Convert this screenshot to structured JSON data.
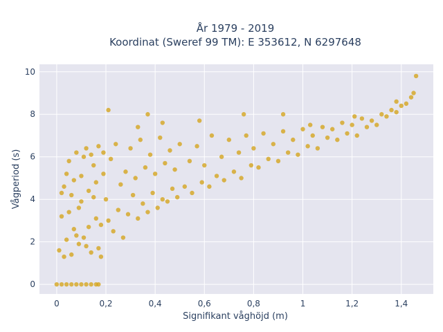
{
  "chart_data": {
    "type": "scatter",
    "title_line1": "År 1979 - 2019",
    "title_line2": "Koordinat (Sweref 99 TM): E 353612, N 6297648",
    "xlabel": "Signifikant våghöjd (m)",
    "ylabel": "Vågperiod (s)",
    "xlim": [
      -0.07,
      1.53
    ],
    "ylim": [
      -0.45,
      10.35
    ],
    "x_ticks": [
      {
        "value": 0,
        "label": "0"
      },
      {
        "value": 0.2,
        "label": "0,2"
      },
      {
        "value": 0.4,
        "label": "0,4"
      },
      {
        "value": 0.6,
        "label": "0,6"
      },
      {
        "value": 0.8,
        "label": "0,8"
      },
      {
        "value": 1.0,
        "label": "1"
      },
      {
        "value": 1.2,
        "label": "1,2"
      },
      {
        "value": 1.4,
        "label": "1,4"
      }
    ],
    "y_ticks": [
      {
        "value": 0,
        "label": "0"
      },
      {
        "value": 2,
        "label": "2"
      },
      {
        "value": 4,
        "label": "4"
      },
      {
        "value": 6,
        "label": "6"
      },
      {
        "value": 8,
        "label": "8"
      },
      {
        "value": 10,
        "label": "10"
      }
    ],
    "grid": true,
    "marker_color": "#d4a51f",
    "plot_background": "#e5e5ef",
    "series": [
      {
        "points": [
          [
            0.01,
            1.6
          ],
          [
            0.02,
            3.2
          ],
          [
            0.03,
            4.6
          ],
          [
            0.04,
            2.1
          ],
          [
            0.05,
            5.8
          ],
          [
            0.06,
            4.2
          ],
          [
            0.07,
            2.6
          ],
          [
            0.08,
            6.2
          ],
          [
            0.09,
            3.6
          ],
          [
            0.1,
            5.1
          ],
          [
            0.11,
            2.2
          ],
          [
            0.12,
            6.4
          ],
          [
            0.13,
            4.4
          ],
          [
            0.14,
            1.5
          ],
          [
            0.15,
            5.6
          ],
          [
            0.16,
            3.1
          ],
          [
            0.17,
            6.5
          ],
          [
            0.18,
            2.8
          ],
          [
            0.19,
            5.2
          ],
          [
            0.2,
            4.0
          ],
          [
            0.02,
            4.3
          ],
          [
            0.04,
            5.2
          ],
          [
            0.06,
            1.4
          ],
          [
            0.08,
            2.3
          ],
          [
            0.1,
            3.9
          ],
          [
            0.12,
            1.8
          ],
          [
            0.14,
            6.1
          ],
          [
            0.16,
            4.8
          ],
          [
            0.18,
            1.3
          ],
          [
            0.03,
            1.3
          ],
          [
            0.05,
            3.4
          ],
          [
            0.07,
            4.9
          ],
          [
            0.09,
            1.9
          ],
          [
            0.11,
            6.0
          ],
          [
            0.13,
            2.7
          ],
          [
            0.15,
            4.1
          ],
          [
            0.17,
            1.7
          ],
          [
            0.19,
            6.2
          ],
          [
            0.21,
            3.0
          ],
          [
            0.22,
            5.9
          ],
          [
            0.23,
            2.5
          ],
          [
            0.24,
            6.6
          ],
          [
            0.25,
            3.5
          ],
          [
            0.26,
            4.7
          ],
          [
            0.27,
            2.2
          ],
          [
            0.28,
            5.3
          ],
          [
            0.29,
            3.3
          ],
          [
            0.3,
            6.4
          ],
          [
            0.31,
            4.2
          ],
          [
            0.32,
            5.0
          ],
          [
            0.33,
            3.1
          ],
          [
            0.34,
            6.8
          ],
          [
            0.35,
            3.8
          ],
          [
            0.36,
            5.5
          ],
          [
            0.37,
            3.4
          ],
          [
            0.38,
            6.1
          ],
          [
            0.39,
            4.3
          ],
          [
            0.4,
            5.2
          ],
          [
            0.41,
            3.6
          ],
          [
            0.42,
            6.9
          ],
          [
            0.43,
            4.0
          ],
          [
            0.44,
            5.7
          ],
          [
            0.45,
            3.9
          ],
          [
            0.46,
            6.3
          ],
          [
            0.47,
            4.5
          ],
          [
            0.48,
            5.4
          ],
          [
            0.49,
            4.1
          ],
          [
            0.5,
            6.6
          ],
          [
            0.52,
            4.6
          ],
          [
            0.54,
            5.8
          ],
          [
            0.55,
            4.3
          ],
          [
            0.57,
            6.5
          ],
          [
            0.59,
            4.8
          ],
          [
            0.6,
            5.6
          ],
          [
            0.62,
            4.6
          ],
          [
            0.63,
            7.0
          ],
          [
            0.65,
            5.1
          ],
          [
            0.67,
            6.0
          ],
          [
            0.68,
            4.9
          ],
          [
            0.7,
            6.8
          ],
          [
            0.72,
            5.3
          ],
          [
            0.74,
            6.2
          ],
          [
            0.75,
            5.0
          ],
          [
            0.77,
            7.0
          ],
          [
            0.79,
            5.6
          ],
          [
            0.8,
            6.4
          ],
          [
            0.82,
            5.5
          ],
          [
            0.84,
            7.1
          ],
          [
            0.86,
            5.9
          ],
          [
            0.88,
            6.6
          ],
          [
            0.9,
            5.8
          ],
          [
            0.92,
            7.2
          ],
          [
            0.94,
            6.2
          ],
          [
            0.96,
            6.8
          ],
          [
            0.98,
            6.1
          ],
          [
            1.0,
            7.3
          ],
          [
            1.02,
            6.5
          ],
          [
            1.04,
            7.0
          ],
          [
            1.06,
            6.4
          ],
          [
            1.08,
            7.4
          ],
          [
            1.1,
            6.9
          ],
          [
            1.12,
            7.3
          ],
          [
            1.14,
            6.8
          ],
          [
            1.16,
            7.6
          ],
          [
            1.18,
            7.1
          ],
          [
            1.2,
            7.5
          ],
          [
            1.22,
            7.0
          ],
          [
            1.24,
            7.8
          ],
          [
            1.26,
            7.4
          ],
          [
            1.28,
            7.7
          ],
          [
            1.3,
            7.5
          ],
          [
            1.32,
            8.0
          ],
          [
            1.34,
            7.9
          ],
          [
            1.36,
            8.2
          ],
          [
            1.38,
            8.1
          ],
          [
            1.4,
            8.4
          ],
          [
            1.42,
            8.5
          ],
          [
            1.44,
            8.8
          ],
          [
            1.45,
            9.0
          ],
          [
            1.46,
            9.8
          ],
          [
            0.21,
            8.2
          ],
          [
            0.37,
            8.0
          ],
          [
            0.76,
            8.0
          ],
          [
            0.92,
            8.0
          ],
          [
            0.43,
            7.6
          ],
          [
            0.33,
            7.4
          ],
          [
            0.58,
            7.7
          ],
          [
            1.03,
            7.5
          ],
          [
            1.21,
            7.9
          ],
          [
            1.38,
            8.6
          ],
          [
            0.0,
            0.0
          ],
          [
            0.02,
            0.0
          ],
          [
            0.04,
            0.0
          ],
          [
            0.06,
            0.0
          ],
          [
            0.08,
            0.0
          ],
          [
            0.1,
            0.0
          ],
          [
            0.12,
            0.0
          ],
          [
            0.14,
            0.0
          ],
          [
            0.16,
            0.0
          ],
          [
            0.17,
            0.0
          ]
        ]
      }
    ]
  }
}
